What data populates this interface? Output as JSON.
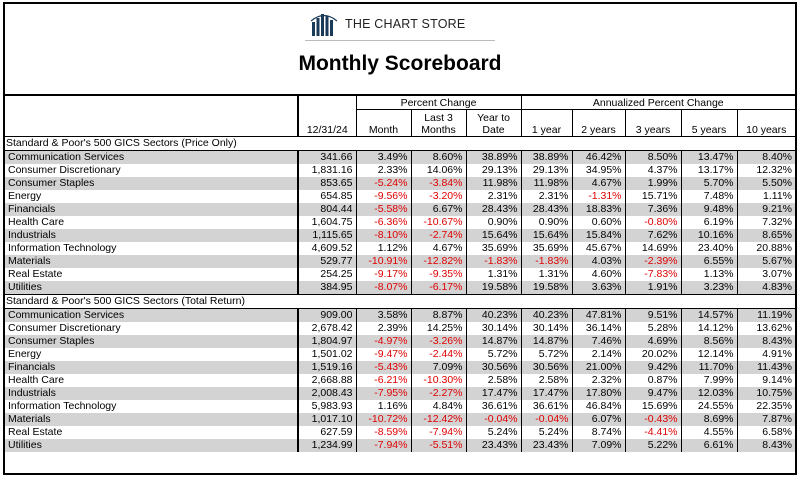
{
  "brand": {
    "name": "THE CHART STORE",
    "logo_icon": "bar-chart-logo-icon"
  },
  "title": "Monthly Scoreboard",
  "header": {
    "date": "12/31/24",
    "group_percent": "Percent Change",
    "group_annualized": "Annualized Percent Change",
    "month": "Month",
    "last3_line1": "Last 3",
    "last3_line2": "Months",
    "ytd_line1": "Year to",
    "ytd_line2": "Date",
    "y1": "1 year",
    "y2": "2 years",
    "y3": "3 years",
    "y5": "5 years",
    "y10": "10 years"
  },
  "sections": [
    {
      "title": "Standard & Poor's 500 GICS Sectors (Price Only)",
      "rows": [
        {
          "name": "Communication Services",
          "value": "341.66",
          "month": "3.49%",
          "last3": "8.60%",
          "ytd": "38.89%",
          "y1": "38.89%",
          "y2": "46.42%",
          "y3": "8.50%",
          "y5": "13.47%",
          "y10": "8.40%"
        },
        {
          "name": "Consumer Discretionary",
          "value": "1,831.16",
          "month": "2.33%",
          "last3": "14.06%",
          "ytd": "29.13%",
          "y1": "29.13%",
          "y2": "34.95%",
          "y3": "4.37%",
          "y5": "13.17%",
          "y10": "12.32%"
        },
        {
          "name": "Consumer Staples",
          "value": "853.65",
          "month": "-5.24%",
          "last3": "-3.84%",
          "ytd": "11.98%",
          "y1": "11.98%",
          "y2": "4.67%",
          "y3": "1.99%",
          "y5": "5.70%",
          "y10": "5.50%"
        },
        {
          "name": "Energy",
          "value": "654.85",
          "month": "-9.56%",
          "last3": "-3.20%",
          "ytd": "2.31%",
          "y1": "2.31%",
          "y2": "-1.31%",
          "y3": "15.71%",
          "y5": "7.48%",
          "y10": "1.11%"
        },
        {
          "name": "Financials",
          "value": "804.44",
          "month": "-5.58%",
          "last3": "6.67%",
          "ytd": "28.43%",
          "y1": "28.43%",
          "y2": "18.83%",
          "y3": "7.36%",
          "y5": "9.48%",
          "y10": "9.21%"
        },
        {
          "name": "Health Care",
          "value": "1,604.75",
          "month": "-6.36%",
          "last3": "-10.67%",
          "ytd": "0.90%",
          "y1": "0.90%",
          "y2": "0.60%",
          "y3": "-0.80%",
          "y5": "6.19%",
          "y10": "7.32%"
        },
        {
          "name": "Industrials",
          "value": "1,115.65",
          "month": "-8.10%",
          "last3": "-2.74%",
          "ytd": "15.64%",
          "y1": "15.64%",
          "y2": "15.84%",
          "y3": "7.62%",
          "y5": "10.16%",
          "y10": "8.65%"
        },
        {
          "name": "Information Technology",
          "value": "4,609.52",
          "month": "1.12%",
          "last3": "4.67%",
          "ytd": "35.69%",
          "y1": "35.69%",
          "y2": "45.67%",
          "y3": "14.69%",
          "y5": "23.40%",
          "y10": "20.88%"
        },
        {
          "name": "Materials",
          "value": "529.77",
          "month": "-10.91%",
          "last3": "-12.82%",
          "ytd": "-1.83%",
          "y1": "-1.83%",
          "y2": "4.03%",
          "y3": "-2.39%",
          "y5": "6.55%",
          "y10": "5.67%"
        },
        {
          "name": "Real Estate",
          "value": "254.25",
          "month": "-9.17%",
          "last3": "-9.35%",
          "ytd": "1.31%",
          "y1": "1.31%",
          "y2": "4.60%",
          "y3": "-7.83%",
          "y5": "1.13%",
          "y10": "3.07%"
        },
        {
          "name": "Utilities",
          "value": "384.95",
          "month": "-8.07%",
          "last3": "-6.17%",
          "ytd": "19.58%",
          "y1": "19.58%",
          "y2": "3.63%",
          "y3": "1.91%",
          "y5": "3.23%",
          "y10": "4.83%"
        }
      ]
    },
    {
      "title": "Standard & Poor's 500 GICS Sectors (Total Return)",
      "rows": [
        {
          "name": "Communication Services",
          "value": "909.00",
          "month": "3.58%",
          "last3": "8.87%",
          "ytd": "40.23%",
          "y1": "40.23%",
          "y2": "47.81%",
          "y3": "9.51%",
          "y5": "14.57%",
          "y10": "11.19%"
        },
        {
          "name": "Consumer Discretionary",
          "value": "2,678.42",
          "month": "2.39%",
          "last3": "14.25%",
          "ytd": "30.14%",
          "y1": "30.14%",
          "y2": "36.14%",
          "y3": "5.28%",
          "y5": "14.12%",
          "y10": "13.62%"
        },
        {
          "name": "Consumer Staples",
          "value": "1,804.97",
          "month": "-4.97%",
          "last3": "-3.26%",
          "ytd": "14.87%",
          "y1": "14.87%",
          "y2": "7.46%",
          "y3": "4.69%",
          "y5": "8.56%",
          "y10": "8.43%"
        },
        {
          "name": "Energy",
          "value": "1,501.02",
          "month": "-9.47%",
          "last3": "-2.44%",
          "ytd": "5.72%",
          "y1": "5.72%",
          "y2": "2.14%",
          "y3": "20.02%",
          "y5": "12.14%",
          "y10": "4.91%"
        },
        {
          "name": "Financials",
          "value": "1,519.16",
          "month": "-5.43%",
          "last3": "7.09%",
          "ytd": "30.56%",
          "y1": "30.56%",
          "y2": "21.00%",
          "y3": "9.42%",
          "y5": "11.70%",
          "y10": "11.43%"
        },
        {
          "name": "Health Care",
          "value": "2,668.88",
          "month": "-6.21%",
          "last3": "-10.30%",
          "ytd": "2.58%",
          "y1": "2.58%",
          "y2": "2.32%",
          "y3": "0.87%",
          "y5": "7.99%",
          "y10": "9.14%"
        },
        {
          "name": "Industrials",
          "value": "2,008.43",
          "month": "-7.95%",
          "last3": "-2.27%",
          "ytd": "17.47%",
          "y1": "17.47%",
          "y2": "17.80%",
          "y3": "9.47%",
          "y5": "12.03%",
          "y10": "10.75%"
        },
        {
          "name": "Information Technology",
          "value": "5,983.93",
          "month": "1.16%",
          "last3": "4.84%",
          "ytd": "36.61%",
          "y1": "36.61%",
          "y2": "46.84%",
          "y3": "15.69%",
          "y5": "24.55%",
          "y10": "22.35%"
        },
        {
          "name": "Materials",
          "value": "1,017.10",
          "month": "-10.72%",
          "last3": "-12.42%",
          "ytd": "-0.04%",
          "y1": "-0.04%",
          "y2": "6.07%",
          "y3": "-0.43%",
          "y5": "8.69%",
          "y10": "7.87%"
        },
        {
          "name": "Real Estate",
          "value": "627.59",
          "month": "-8.59%",
          "last3": "-7.94%",
          "ytd": "5.24%",
          "y1": "5.24%",
          "y2": "8.74%",
          "y3": "-4.41%",
          "y5": "4.55%",
          "y10": "6.58%"
        },
        {
          "name": "Utilities",
          "value": "1,234.99",
          "month": "-7.94%",
          "last3": "-5.51%",
          "ytd": "23.43%",
          "y1": "23.43%",
          "y2": "7.09%",
          "y3": "5.22%",
          "y5": "6.61%",
          "y10": "8.43%"
        }
      ]
    }
  ],
  "colors": {
    "negative": "#e00000",
    "band": "#d3d3d3"
  }
}
